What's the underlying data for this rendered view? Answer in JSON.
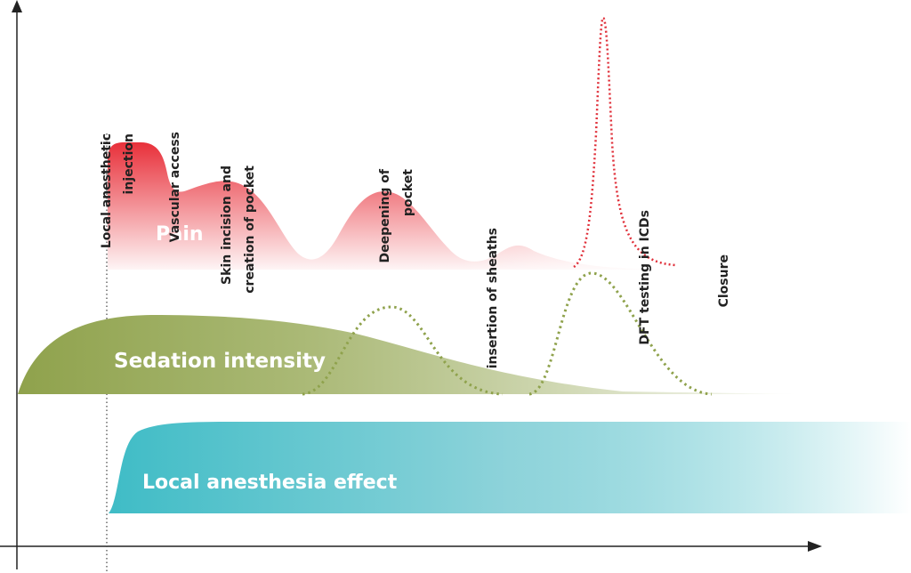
{
  "colors": {
    "pain": "#e8303a",
    "sedation": "#8fa24c",
    "local_anesthesia": "#3fbcc6",
    "dft_line": "#e0303a",
    "sedation_dotted": "#8fa24c",
    "axis": "#222222"
  },
  "events": {
    "local_injection": [
      "Local anesthetic",
      "injection"
    ],
    "vascular_access": [
      "Vascular access"
    ],
    "skin_incision": [
      "Skin incision and",
      "creation of pocket"
    ],
    "deepening": [
      "Deepening of",
      "pocket"
    ],
    "sheaths": [
      "insertion of sheaths"
    ],
    "dft": [
      "DFT testing in ICDs"
    ],
    "closure": [
      "Closure"
    ]
  },
  "areas": {
    "pain": "Pain",
    "sedation": "Sedation intensity",
    "local": "Local anesthesia effect"
  }
}
